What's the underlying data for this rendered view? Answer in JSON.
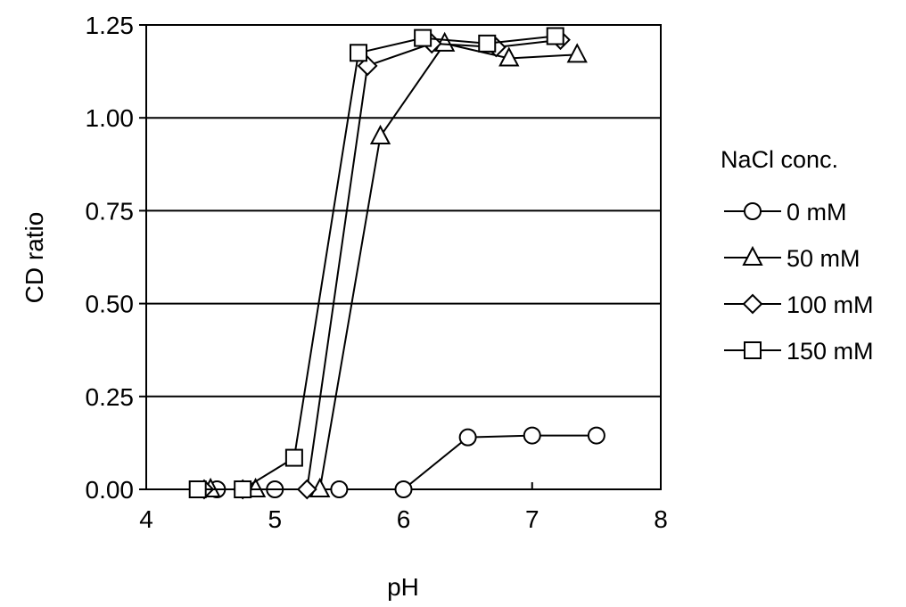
{
  "chart_data": {
    "type": "line",
    "title": "",
    "xlabel": "pH",
    "ylabel": "CD ratio",
    "xlim": [
      4,
      8
    ],
    "ylim": [
      0,
      1.25
    ],
    "x_ticks": [
      "4",
      "5",
      "6",
      "7",
      "8"
    ],
    "y_ticks": [
      "0.00",
      "0.25",
      "0.50",
      "0.75",
      "1.00",
      "1.25"
    ],
    "grid": "horizontal",
    "legend_title": "NaCl conc.",
    "legend_position": "right",
    "series": [
      {
        "name": "0 mM",
        "marker": "circle",
        "points": [
          [
            4.55,
            0.0
          ],
          [
            5.0,
            0.0
          ],
          [
            5.5,
            0.0
          ],
          [
            6.0,
            0.0
          ],
          [
            6.5,
            0.14
          ],
          [
            7.0,
            0.145
          ],
          [
            7.5,
            0.145
          ]
        ]
      },
      {
        "name": "50 mM",
        "marker": "triangle",
        "points": [
          [
            4.5,
            0.0
          ],
          [
            4.85,
            0.0
          ],
          [
            5.35,
            0.0
          ],
          [
            5.82,
            0.95
          ],
          [
            6.32,
            1.2
          ],
          [
            6.82,
            1.16
          ],
          [
            7.35,
            1.17
          ]
        ]
      },
      {
        "name": "100 mM",
        "marker": "diamond",
        "points": [
          [
            4.45,
            0.0
          ],
          [
            4.75,
            0.0
          ],
          [
            5.25,
            0.0
          ],
          [
            5.72,
            1.14
          ],
          [
            6.22,
            1.2
          ],
          [
            6.72,
            1.19
          ],
          [
            7.22,
            1.21
          ]
        ]
      },
      {
        "name": "150 mM",
        "marker": "square",
        "points": [
          [
            4.4,
            0.0
          ],
          [
            4.75,
            0.0
          ],
          [
            5.15,
            0.085
          ],
          [
            5.65,
            1.175
          ],
          [
            6.15,
            1.215
          ],
          [
            6.65,
            1.2
          ],
          [
            7.18,
            1.22
          ]
        ]
      }
    ],
    "colors": {
      "line": "#000000",
      "marker_fill": "#ffffff",
      "grid": "#000000"
    }
  }
}
